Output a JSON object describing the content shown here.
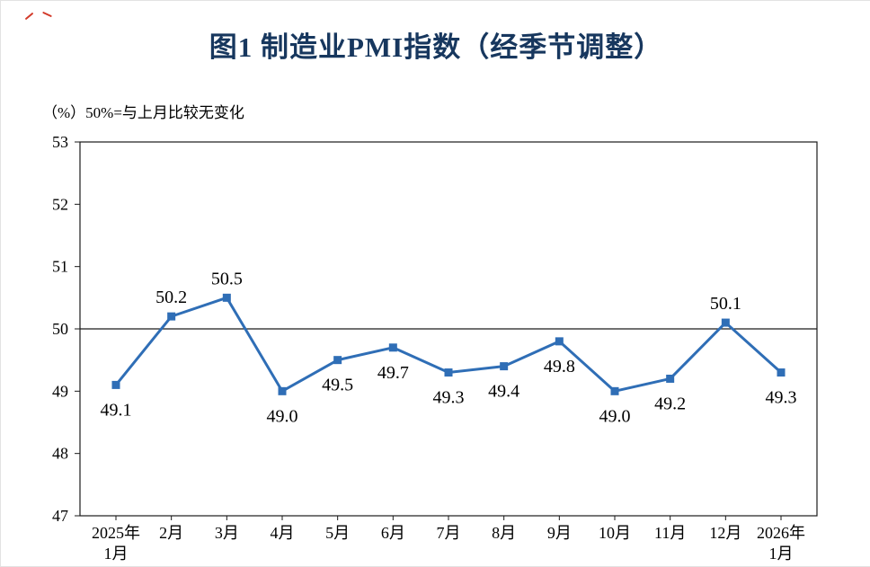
{
  "chart_data": {
    "type": "line",
    "title": "图1  制造业PMI指数（经季节调整）",
    "unit_note": "（%）50%=与上月比较无变化",
    "series_name": "制造业PMI指数",
    "categories": [
      "2025年\n1月",
      "2月",
      "3月",
      "4月",
      "5月",
      "6月",
      "7月",
      "8月",
      "9月",
      "10月",
      "11月",
      "12月",
      "2026年\n1月"
    ],
    "values": [
      49.1,
      50.2,
      50.5,
      49.0,
      49.5,
      49.7,
      49.3,
      49.4,
      49.8,
      49.0,
      49.2,
      50.1,
      49.3
    ],
    "ylim": [
      47,
      53
    ],
    "yticks": [
      53,
      52,
      51,
      50,
      49,
      48,
      47
    ],
    "reference_line": 50,
    "grid": false,
    "legend": "none",
    "marker": "square",
    "colors": {
      "line": "#2f6eb6",
      "marker": "#2f6eb6",
      "axis": "#1a1a1a",
      "label": "#000000",
      "title": "#17375e"
    }
  }
}
